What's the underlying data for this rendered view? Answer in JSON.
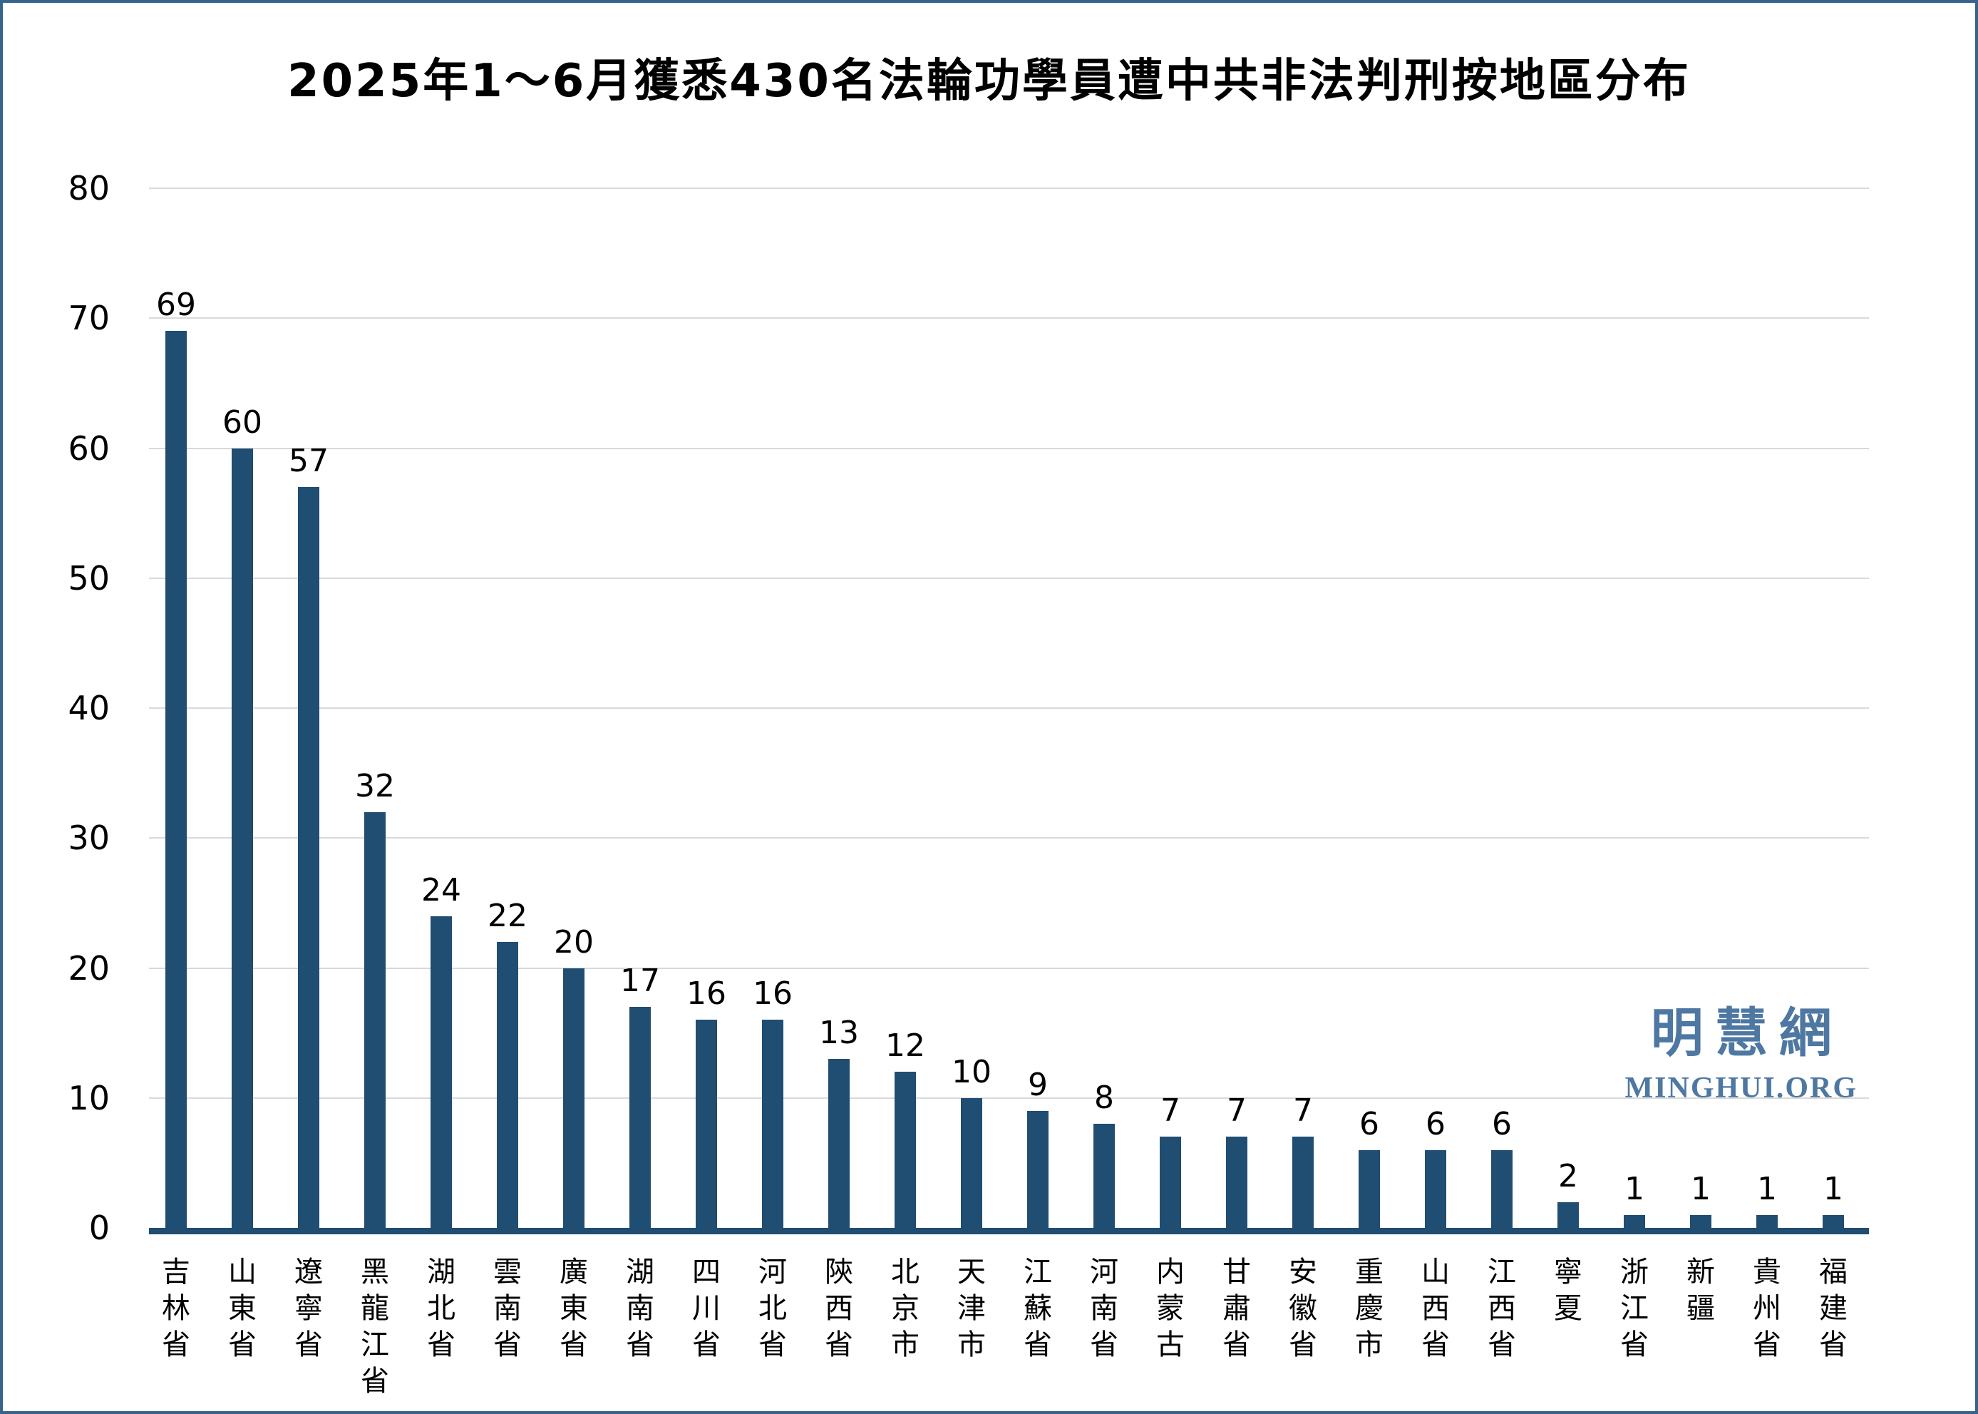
{
  "page": {
    "background_color": "#FFFFFF",
    "border_color": "#36648B"
  },
  "chart_data": {
    "type": "bar",
    "title": "2025年1～6月獲悉430名法輪功學員遭中共非法判刑按地區分布",
    "categories": [
      "吉林省",
      "山東省",
      "遼寧省",
      "黑龍江省",
      "湖北省",
      "雲南省",
      "廣東省",
      "湖南省",
      "四川省",
      "河北省",
      "陝西省",
      "北京市",
      "天津市",
      "江蘇省",
      "河南省",
      "内蒙古",
      "甘肅省",
      "安徽省",
      "重慶市",
      "山西省",
      "江西省",
      "寧夏",
      "浙江省",
      "新疆",
      "貴州省",
      "福建省"
    ],
    "values": [
      69,
      60,
      57,
      32,
      24,
      22,
      20,
      17,
      16,
      16,
      13,
      12,
      10,
      9,
      8,
      7,
      7,
      7,
      6,
      6,
      6,
      2,
      1,
      1,
      1,
      1
    ],
    "total": 430,
    "xlabel": "",
    "ylabel": "",
    "ylim": [
      0,
      80
    ],
    "y_ticks": [
      0,
      10,
      20,
      30,
      40,
      50,
      60,
      70,
      80
    ],
    "grid": "horizontal",
    "legend": "none",
    "data_labels": true,
    "bar_color": "#204D72",
    "axis_line_color": "#204D72",
    "gridline_color": "#D9D9D9"
  },
  "watermark": {
    "chinese": "明慧網",
    "url": "MINGHUI.ORG",
    "color": "#4E78A2"
  }
}
